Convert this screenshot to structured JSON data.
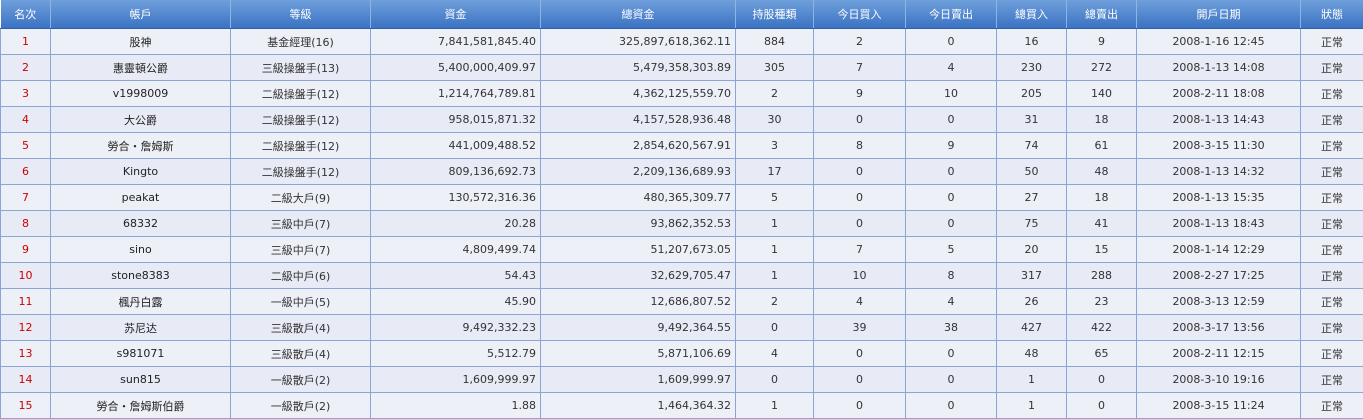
{
  "columns": [
    "名次",
    "帳戶",
    "等級",
    "資金",
    "總資金",
    "持股種類",
    "今日買入",
    "今日賣出",
    "總買入",
    "總賣出",
    "開戶日期",
    "狀態"
  ],
  "rows": [
    {
      "rank": "1",
      "account": "股神",
      "level": "基金經理(16)",
      "funds": "7,841,581,845.40",
      "total": "325,897,618,362.11",
      "holdings": "884",
      "buy_today": "2",
      "sell_today": "0",
      "total_buy": "16",
      "total_sell": "9",
      "opened": "2008-1-16 12:45",
      "status": "正常"
    },
    {
      "rank": "2",
      "account": "惠靈頓公爵",
      "level": "三級操盤手(13)",
      "funds": "5,400,000,409.97",
      "total": "5,479,358,303.89",
      "holdings": "305",
      "buy_today": "7",
      "sell_today": "4",
      "total_buy": "230",
      "total_sell": "272",
      "opened": "2008-1-13 14:08",
      "status": "正常"
    },
    {
      "rank": "3",
      "account": "v1998009",
      "level": "二級操盤手(12)",
      "funds": "1,214,764,789.81",
      "total": "4,362,125,559.70",
      "holdings": "2",
      "buy_today": "9",
      "sell_today": "10",
      "total_buy": "205",
      "total_sell": "140",
      "opened": "2008-2-11 18:08",
      "status": "正常"
    },
    {
      "rank": "4",
      "account": "大公爵",
      "level": "二級操盤手(12)",
      "funds": "958,015,871.32",
      "total": "4,157,528,936.48",
      "holdings": "30",
      "buy_today": "0",
      "sell_today": "0",
      "total_buy": "31",
      "total_sell": "18",
      "opened": "2008-1-13 14:43",
      "status": "正常"
    },
    {
      "rank": "5",
      "account": "勞合・詹姆斯",
      "level": "二級操盤手(12)",
      "funds": "441,009,488.52",
      "total": "2,854,620,567.91",
      "holdings": "3",
      "buy_today": "8",
      "sell_today": "9",
      "total_buy": "74",
      "total_sell": "61",
      "opened": "2008-3-15 11:30",
      "status": "正常"
    },
    {
      "rank": "6",
      "account": "Kingto",
      "level": "二級操盤手(12)",
      "funds": "809,136,692.73",
      "total": "2,209,136,689.93",
      "holdings": "17",
      "buy_today": "0",
      "sell_today": "0",
      "total_buy": "50",
      "total_sell": "48",
      "opened": "2008-1-13 14:32",
      "status": "正常"
    },
    {
      "rank": "7",
      "account": "peakat",
      "level": "二級大戶(9)",
      "funds": "130,572,316.36",
      "total": "480,365,309.77",
      "holdings": "5",
      "buy_today": "0",
      "sell_today": "0",
      "total_buy": "27",
      "total_sell": "18",
      "opened": "2008-1-13 15:35",
      "status": "正常"
    },
    {
      "rank": "8",
      "account": "68332",
      "level": "三級中戶(7)",
      "funds": "20.28",
      "total": "93,862,352.53",
      "holdings": "1",
      "buy_today": "0",
      "sell_today": "0",
      "total_buy": "75",
      "total_sell": "41",
      "opened": "2008-1-13 18:43",
      "status": "正常"
    },
    {
      "rank": "9",
      "account": "sino",
      "level": "三級中戶(7)",
      "funds": "4,809,499.74",
      "total": "51,207,673.05",
      "holdings": "1",
      "buy_today": "7",
      "sell_today": "5",
      "total_buy": "20",
      "total_sell": "15",
      "opened": "2008-1-14 12:29",
      "status": "正常"
    },
    {
      "rank": "10",
      "account": "stone8383",
      "level": "二級中戶(6)",
      "funds": "54.43",
      "total": "32,629,705.47",
      "holdings": "1",
      "buy_today": "10",
      "sell_today": "8",
      "total_buy": "317",
      "total_sell": "288",
      "opened": "2008-2-27 17:25",
      "status": "正常"
    },
    {
      "rank": "11",
      "account": "楓丹白露",
      "level": "一級中戶(5)",
      "funds": "45.90",
      "total": "12,686,807.52",
      "holdings": "2",
      "buy_today": "4",
      "sell_today": "4",
      "total_buy": "26",
      "total_sell": "23",
      "opened": "2008-3-13 12:59",
      "status": "正常"
    },
    {
      "rank": "12",
      "account": "苏尼达",
      "level": "三級散戶(4)",
      "funds": "9,492,332.23",
      "total": "9,492,364.55",
      "holdings": "0",
      "buy_today": "39",
      "sell_today": "38",
      "total_buy": "427",
      "total_sell": "422",
      "opened": "2008-3-17 13:56",
      "status": "正常"
    },
    {
      "rank": "13",
      "account": "s981071",
      "level": "三級散戶(4)",
      "funds": "5,512.79",
      "total": "5,871,106.69",
      "holdings": "4",
      "buy_today": "0",
      "sell_today": "0",
      "total_buy": "48",
      "total_sell": "65",
      "opened": "2008-2-11 12:15",
      "status": "正常"
    },
    {
      "rank": "14",
      "account": "sun815",
      "level": "一級散戶(2)",
      "funds": "1,609,999.97",
      "total": "1,609,999.97",
      "holdings": "0",
      "buy_today": "0",
      "sell_today": "0",
      "total_buy": "1",
      "total_sell": "0",
      "opened": "2008-3-10 19:16",
      "status": "正常"
    },
    {
      "rank": "15",
      "account": "勞合・詹姆斯伯爵",
      "level": "一級散戶(2)",
      "funds": "1.88",
      "total": "1,464,364.32",
      "holdings": "1",
      "buy_today": "0",
      "sell_today": "0",
      "total_buy": "1",
      "total_sell": "0",
      "opened": "2008-3-15 11:24",
      "status": "正常"
    }
  ],
  "colors": {
    "header_bg": "#4a82cc",
    "header_text": "#ffffff",
    "rank_text": "#cc0000",
    "row_bg": "#eef0f8",
    "grid": "#8aa6d4"
  }
}
